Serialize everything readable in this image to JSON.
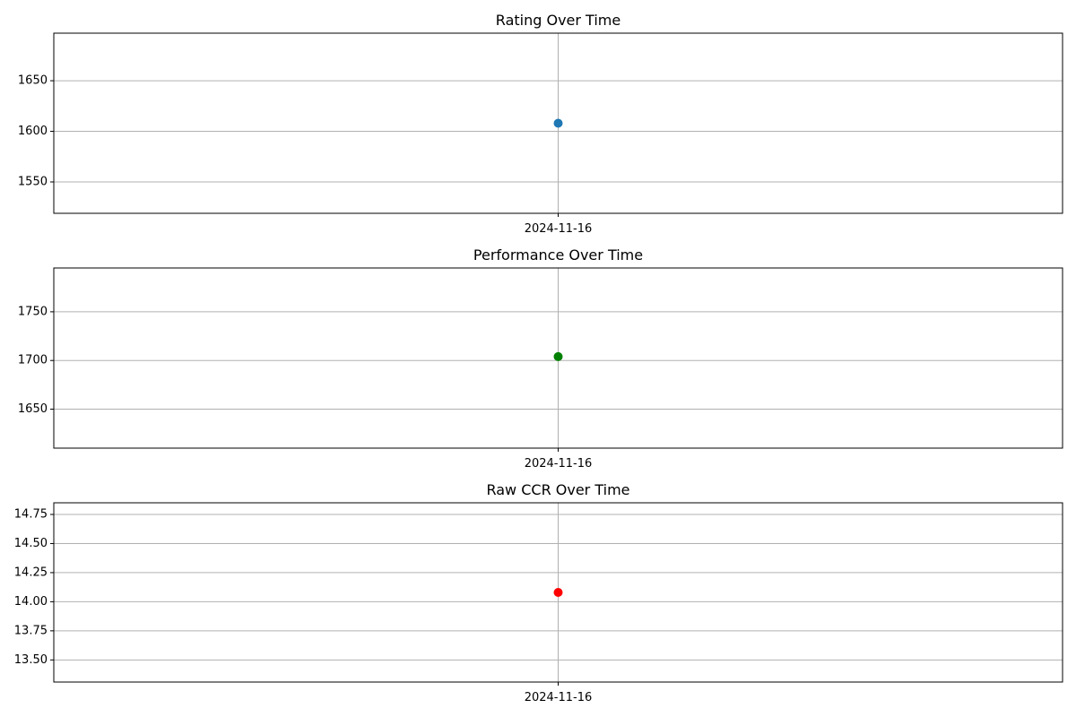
{
  "chart_data": [
    {
      "type": "scatter",
      "title": "Rating Over Time",
      "xlabel": "",
      "ylabel": "",
      "x": [
        "2024-11-16"
      ],
      "series": [
        {
          "values": [
            1608
          ],
          "color": "#1f77b4",
          "marker": "circle"
        }
      ],
      "ylim": [
        1519,
        1697
      ],
      "y_ticks": [
        1550,
        1600,
        1650
      ],
      "y_tick_labels": [
        "1550",
        "1600",
        "1650"
      ],
      "x_ticks": [
        "2024-11-16"
      ],
      "grid": true,
      "legend": "none"
    },
    {
      "type": "scatter",
      "title": "Performance Over Time",
      "xlabel": "",
      "ylabel": "",
      "x": [
        "2024-11-16"
      ],
      "series": [
        {
          "values": [
            1704
          ],
          "color": "#008000",
          "marker": "circle"
        }
      ],
      "ylim": [
        1610,
        1795
      ],
      "y_ticks": [
        1650,
        1700,
        1750
      ],
      "y_tick_labels": [
        "1650",
        "1700",
        "1750"
      ],
      "x_ticks": [
        "2024-11-16"
      ],
      "grid": true,
      "legend": "none"
    },
    {
      "type": "scatter",
      "title": "Raw CCR Over Time",
      "xlabel": "",
      "ylabel": "",
      "x": [
        "2024-11-16"
      ],
      "series": [
        {
          "values": [
            14.08
          ],
          "color": "#ff0000",
          "marker": "circle"
        }
      ],
      "ylim": [
        13.31,
        14.85
      ],
      "y_ticks": [
        13.5,
        13.75,
        14.0,
        14.25,
        14.5,
        14.75
      ],
      "y_tick_labels": [
        "13.50",
        "13.75",
        "14.00",
        "14.25",
        "14.50",
        "14.75"
      ],
      "x_ticks": [
        "2024-11-16"
      ],
      "grid": true,
      "legend": "none"
    }
  ]
}
